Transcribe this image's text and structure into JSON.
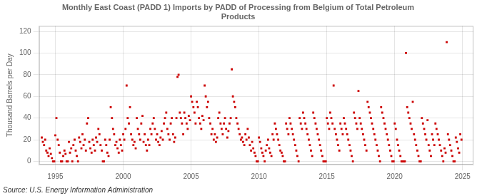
{
  "chart_data": {
    "type": "scatter",
    "title": "Monthly East Coast (PADD 1) Imports by PADD of Processing from Belgium of Total Petroleum\nProducts",
    "ylabel": "Thousand Barrels per Day",
    "annotation": "Source: U.S. Energy Information Administration",
    "color": "#cc0000",
    "marker": "square",
    "grid": true,
    "xlim": [
      1993.8,
      2025.8
    ],
    "ylim": [
      -3,
      125
    ],
    "xticks": [
      1995,
      2000,
      2005,
      2010,
      2015,
      2020,
      2025
    ],
    "yticks": [
      0,
      20,
      40,
      60,
      80,
      100,
      120
    ],
    "x": [
      1994.0,
      1994.08,
      1994.17,
      1994.25,
      1994.33,
      1994.42,
      1994.5,
      1994.58,
      1994.67,
      1994.75,
      1994.83,
      1994.92,
      1995.0,
      1995.08,
      1995.17,
      1995.25,
      1995.33,
      1995.42,
      1995.5,
      1995.58,
      1995.67,
      1995.75,
      1995.83,
      1995.92,
      1996.0,
      1996.08,
      1996.17,
      1996.25,
      1996.33,
      1996.42,
      1996.5,
      1996.58,
      1996.67,
      1996.75,
      1996.83,
      1996.92,
      1997.0,
      1997.08,
      1997.17,
      1997.25,
      1997.33,
      1997.42,
      1997.5,
      1997.58,
      1997.67,
      1997.75,
      1997.83,
      1997.92,
      1998.0,
      1998.08,
      1998.17,
      1998.25,
      1998.33,
      1998.42,
      1998.5,
      1998.58,
      1998.67,
      1998.75,
      1998.83,
      1998.92,
      1999.0,
      1999.08,
      1999.17,
      1999.25,
      1999.33,
      1999.42,
      1999.5,
      1999.58,
      1999.67,
      1999.75,
      1999.83,
      1999.92,
      2000.0,
      2000.08,
      2000.17,
      2000.25,
      2000.33,
      2000.42,
      2000.5,
      2000.58,
      2000.67,
      2000.75,
      2000.83,
      2000.92,
      2001.0,
      2001.08,
      2001.17,
      2001.25,
      2001.33,
      2001.42,
      2001.5,
      2001.58,
      2001.67,
      2001.75,
      2001.83,
      2001.92,
      2002.0,
      2002.08,
      2002.17,
      2002.25,
      2002.33,
      2002.42,
      2002.5,
      2002.58,
      2002.67,
      2002.75,
      2002.83,
      2002.92,
      2003.0,
      2003.08,
      2003.17,
      2003.25,
      2003.33,
      2003.42,
      2003.5,
      2003.58,
      2003.67,
      2003.75,
      2003.83,
      2003.92,
      2004.0,
      2004.08,
      2004.17,
      2004.25,
      2004.33,
      2004.42,
      2004.5,
      2004.58,
      2004.67,
      2004.75,
      2004.83,
      2004.92,
      2005.0,
      2005.08,
      2005.17,
      2005.25,
      2005.33,
      2005.42,
      2005.5,
      2005.58,
      2005.67,
      2005.75,
      2005.83,
      2005.92,
      2006.0,
      2006.08,
      2006.17,
      2006.25,
      2006.33,
      2006.42,
      2006.5,
      2006.58,
      2006.67,
      2006.75,
      2006.83,
      2006.92,
      2007.0,
      2007.08,
      2007.17,
      2007.25,
      2007.33,
      2007.42,
      2007.5,
      2007.58,
      2007.67,
      2007.75,
      2007.83,
      2007.92,
      2008.0,
      2008.08,
      2008.17,
      2008.25,
      2008.33,
      2008.42,
      2008.5,
      2008.58,
      2008.67,
      2008.75,
      2008.83,
      2008.92,
      2009.0,
      2009.08,
      2009.17,
      2009.25,
      2009.33,
      2009.42,
      2009.5,
      2009.58,
      2009.67,
      2009.75,
      2009.83,
      2009.92,
      2010.0,
      2010.08,
      2010.17,
      2010.25,
      2010.33,
      2010.42,
      2010.5,
      2010.58,
      2010.67,
      2010.75,
      2010.83,
      2010.92,
      2011.0,
      2011.08,
      2011.17,
      2011.25,
      2011.33,
      2011.42,
      2011.5,
      2011.58,
      2011.67,
      2011.75,
      2011.83,
      2011.92,
      2012.0,
      2012.08,
      2012.17,
      2012.25,
      2012.33,
      2012.42,
      2012.5,
      2012.58,
      2012.67,
      2012.75,
      2012.83,
      2012.92,
      2013.0,
      2013.08,
      2013.17,
      2013.25,
      2013.33,
      2013.42,
      2013.5,
      2013.58,
      2013.67,
      2013.75,
      2013.83,
      2013.92,
      2014.0,
      2014.08,
      2014.17,
      2014.25,
      2014.33,
      2014.42,
      2014.5,
      2014.58,
      2014.67,
      2014.75,
      2014.83,
      2014.92,
      2015.0,
      2015.08,
      2015.17,
      2015.25,
      2015.33,
      2015.42,
      2015.5,
      2015.58,
      2015.67,
      2015.75,
      2015.83,
      2015.92,
      2016.0,
      2016.08,
      2016.17,
      2016.25,
      2016.33,
      2016.42,
      2016.5,
      2016.58,
      2016.67,
      2016.75,
      2016.83,
      2016.92,
      2017.0,
      2017.08,
      2017.17,
      2017.25,
      2017.33,
      2017.42,
      2017.5,
      2017.58,
      2017.67,
      2017.75,
      2017.83,
      2017.92,
      2018.0,
      2018.08,
      2018.17,
      2018.25,
      2018.33,
      2018.42,
      2018.5,
      2018.58,
      2018.67,
      2018.75,
      2018.83,
      2018.92,
      2019.0,
      2019.08,
      2019.17,
      2019.25,
      2019.33,
      2019.42,
      2019.5,
      2019.58,
      2019.67,
      2019.75,
      2019.83,
      2019.92,
      2020.0,
      2020.08,
      2020.17,
      2020.25,
      2020.33,
      2020.42,
      2020.5,
      2020.58,
      2020.67,
      2020.75,
      2020.83,
      2020.92,
      2021.0,
      2021.08,
      2021.17,
      2021.25,
      2021.33,
      2021.42,
      2021.5,
      2021.58,
      2021.67,
      2021.75,
      2021.83,
      2021.92,
      2022.0,
      2022.08,
      2022.17,
      2022.25,
      2022.33,
      2022.42,
      2022.5,
      2022.58,
      2022.67,
      2022.75,
      2022.83,
      2022.92,
      2023.0,
      2023.08,
      2023.17,
      2023.25,
      2023.33,
      2023.42,
      2023.5,
      2023.58,
      2023.67,
      2023.75,
      2023.83,
      2023.92,
      2024.0,
      2024.08,
      2024.17,
      2024.25,
      2024.33,
      2024.42,
      2024.5,
      2024.58,
      2024.67,
      2024.75,
      2024.83,
      2024.92
    ],
    "values": [
      22,
      18,
      15,
      20,
      10,
      8,
      5,
      12,
      7,
      3,
      0,
      0,
      24,
      40,
      20,
      15,
      8,
      0,
      0,
      5,
      10,
      7,
      0,
      0,
      18,
      8,
      12,
      0,
      15,
      20,
      10,
      5,
      0,
      22,
      18,
      12,
      25,
      15,
      20,
      10,
      35,
      40,
      18,
      12,
      8,
      20,
      15,
      10,
      22,
      18,
      30,
      25,
      15,
      10,
      0,
      0,
      20,
      15,
      8,
      5,
      20,
      50,
      40,
      30,
      25,
      15,
      18,
      12,
      8,
      20,
      15,
      10,
      25,
      20,
      30,
      70,
      40,
      35,
      50,
      25,
      20,
      15,
      18,
      12,
      40,
      30,
      25,
      20,
      35,
      42,
      18,
      25,
      15,
      10,
      20,
      15,
      30,
      25,
      35,
      40,
      30,
      20,
      25,
      18,
      15,
      22,
      28,
      20,
      35,
      40,
      45,
      30,
      25,
      20,
      35,
      40,
      25,
      18,
      22,
      40,
      78,
      80,
      45,
      40,
      35,
      25,
      45,
      40,
      35,
      30,
      42,
      38,
      60,
      55,
      50,
      45,
      35,
      55,
      50,
      40,
      35,
      30,
      42,
      38,
      70,
      60,
      50,
      55,
      40,
      35,
      25,
      30,
      20,
      25,
      18,
      22,
      40,
      45,
      35,
      30,
      25,
      35,
      40,
      30,
      22,
      28,
      35,
      40,
      85,
      60,
      55,
      50,
      40,
      35,
      30,
      25,
      20,
      22,
      18,
      15,
      25,
      20,
      30,
      22,
      15,
      10,
      18,
      12,
      8,
      5,
      0,
      0,
      22,
      18,
      12,
      8,
      5,
      0,
      10,
      15,
      20,
      12,
      8,
      5,
      25,
      20,
      35,
      30,
      25,
      20,
      15,
      10,
      8,
      5,
      0,
      0,
      35,
      30,
      25,
      40,
      35,
      30,
      25,
      20,
      15,
      10,
      5,
      0,
      40,
      35,
      30,
      45,
      40,
      35,
      30,
      25,
      20,
      15,
      10,
      5,
      45,
      40,
      35,
      30,
      25,
      20,
      15,
      10,
      5,
      0,
      0,
      0,
      40,
      35,
      30,
      45,
      40,
      35,
      70,
      30,
      25,
      20,
      15,
      10,
      35,
      30,
      25,
      40,
      35,
      30,
      25,
      20,
      15,
      10,
      5,
      0,
      45,
      40,
      35,
      30,
      65,
      40,
      35,
      30,
      25,
      20,
      15,
      10,
      55,
      50,
      45,
      40,
      35,
      30,
      25,
      20,
      15,
      10,
      5,
      0,
      50,
      45,
      40,
      35,
      30,
      25,
      20,
      15,
      10,
      5,
      0,
      0,
      35,
      30,
      20,
      15,
      10,
      5,
      0,
      0,
      0,
      0,
      100,
      50,
      45,
      40,
      35,
      30,
      55,
      25,
      20,
      15,
      10,
      5,
      0,
      0,
      40,
      35,
      30,
      25,
      20,
      38,
      15,
      10,
      5,
      25,
      20,
      15,
      35,
      30,
      25,
      20,
      15,
      10,
      5,
      0,
      12,
      8,
      110,
      25,
      20,
      15,
      10,
      5,
      0,
      0,
      22,
      18,
      12,
      8,
      25,
      20
    ]
  }
}
